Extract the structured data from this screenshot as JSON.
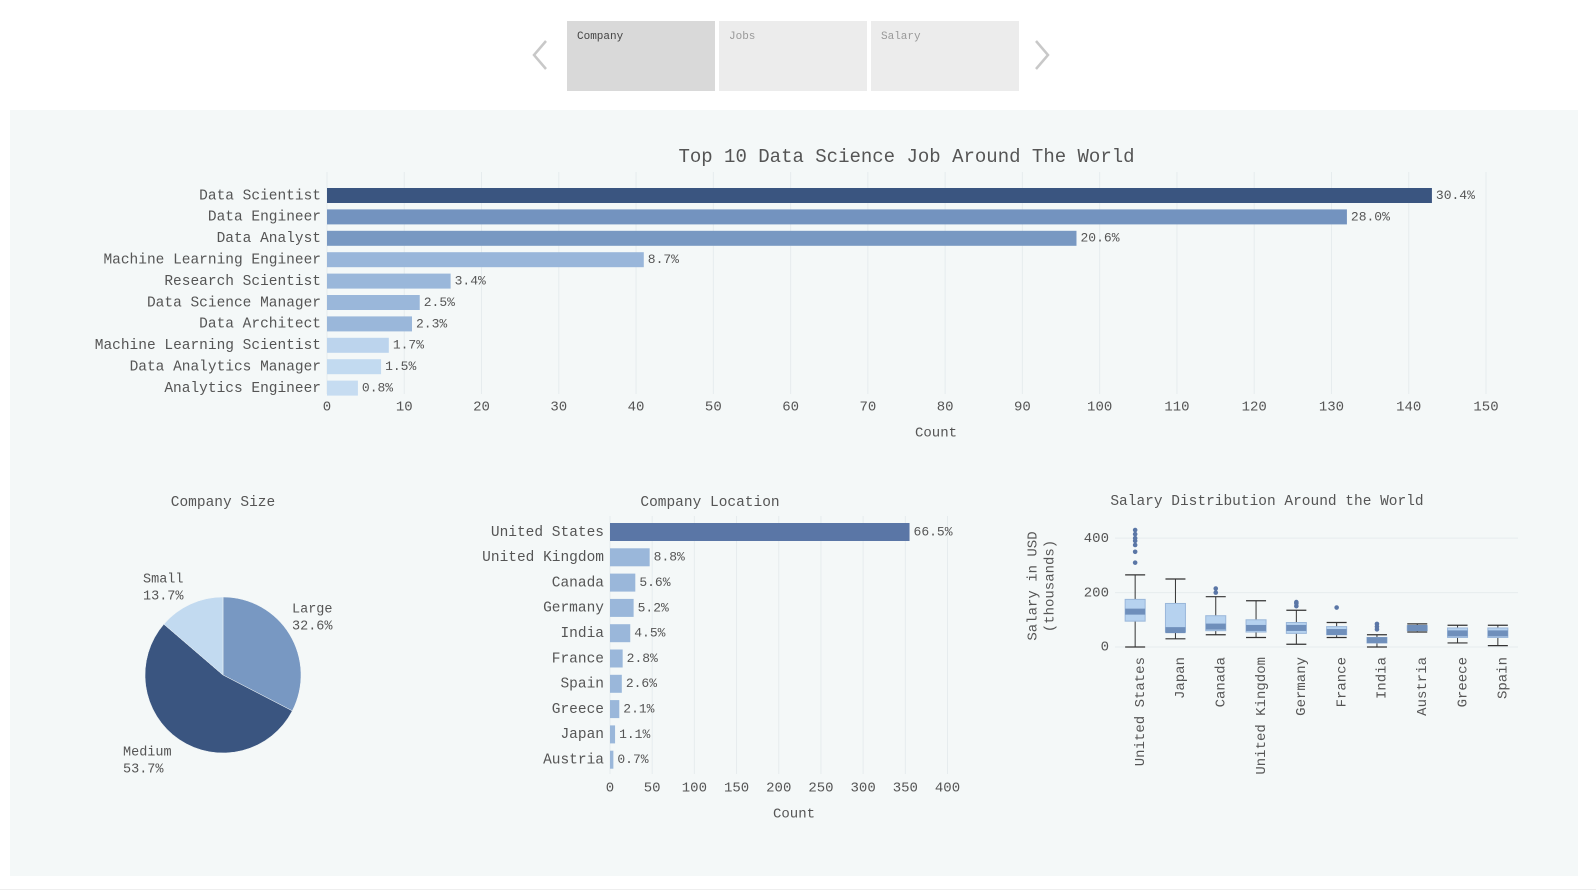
{
  "tabs": [
    {
      "label": "Company",
      "active": true
    },
    {
      "label": "Jobs",
      "active": false
    },
    {
      "label": "Salary",
      "active": false
    }
  ],
  "colors": {
    "panel": "#f4f8f8",
    "dark": "#3a5580",
    "mid": "#7898c2",
    "light": "#9ab7da",
    "lighter": "#c2daf0"
  },
  "chart_data": [
    {
      "type": "bar",
      "orientation": "horizontal",
      "title": "Top 10 Data Science Job Around The World",
      "xlabel": "Count",
      "categories": [
        "Data Scientist",
        "Data Engineer",
        "Data Analyst",
        "Machine Learning Engineer",
        "Research Scientist",
        "Data Science Manager",
        "Data Architect",
        "Machine Learning Scientist",
        "Data Analytics Manager",
        "Analytics Engineer"
      ],
      "values": [
        143,
        132,
        97,
        41,
        16,
        12,
        11,
        8,
        7,
        4
      ],
      "labels": [
        "30.4%",
        "28.0%",
        "20.6%",
        "8.7%",
        "3.4%",
        "2.5%",
        "2.3%",
        "1.7%",
        "1.5%",
        "0.8%"
      ],
      "colors": [
        "#3a5580",
        "#7393bf",
        "#7898c2",
        "#99b6da",
        "#9ab7da",
        "#9ab7da",
        "#9ab7da",
        "#bcd4ed",
        "#c2daf0",
        "#c6dcf1"
      ],
      "xticks": [
        0,
        10,
        20,
        30,
        40,
        50,
        60,
        70,
        80,
        90,
        100,
        110,
        120,
        130,
        140,
        150
      ],
      "xlim": [
        0,
        150
      ],
      "grid": true
    },
    {
      "type": "pie",
      "title": "Company Size",
      "slices": [
        {
          "label": "Large",
          "value": 32.6,
          "pct": "32.6%",
          "color": "#7898c2"
        },
        {
          "label": "Medium",
          "value": 53.7,
          "pct": "53.7%",
          "color": "#3a5580"
        },
        {
          "label": "Small",
          "value": 13.7,
          "pct": "13.7%",
          "color": "#c2daf0"
        }
      ]
    },
    {
      "type": "bar",
      "orientation": "horizontal",
      "title": "Company Location",
      "xlabel": "Count",
      "categories": [
        "United States",
        "United Kingdom",
        "Canada",
        "Germany",
        "India",
        "France",
        "Spain",
        "Greece",
        "Japan",
        "Austria"
      ],
      "values": [
        355,
        47,
        30,
        28,
        24,
        15,
        14,
        11,
        6,
        4
      ],
      "labels": [
        "66.5%",
        "8.8%",
        "5.6%",
        "5.2%",
        "4.5%",
        "2.8%",
        "2.6%",
        "2.1%",
        "1.1%",
        "0.7%"
      ],
      "colors": [
        "#5a76a6",
        "#9ab7da",
        "#9ab7da",
        "#9ab7da",
        "#9ab7da",
        "#9ab7da",
        "#9ab7da",
        "#9ab7da",
        "#9ab7da",
        "#9ab7da"
      ],
      "xticks": [
        0,
        50,
        100,
        150,
        200,
        250,
        300,
        350,
        400
      ],
      "xlim": [
        0,
        400
      ],
      "grid": true
    },
    {
      "type": "box",
      "title": "Salary Distribution Around the World",
      "ylabel": "Salary in USD\n(thousands)",
      "categories": [
        "United States",
        "Japan",
        "Canada",
        "United Kingdom",
        "Germany",
        "France",
        "India",
        "Austria",
        "Greece",
        "Spain"
      ],
      "yticks": [
        0,
        200,
        400
      ],
      "ylim": [
        0,
        430
      ],
      "boxes": [
        {
          "min": 0,
          "q1": 95,
          "median": 130,
          "q3": 175,
          "max": 265,
          "outliers": [
            310,
            350,
            375,
            390,
            400,
            415,
            430
          ]
        },
        {
          "min": 30,
          "q1": 55,
          "median": 62,
          "q3": 160,
          "max": 250,
          "outliers": []
        },
        {
          "min": 45,
          "q1": 60,
          "median": 75,
          "q3": 115,
          "max": 185,
          "outliers": [
            200,
            215
          ]
        },
        {
          "min": 35,
          "q1": 55,
          "median": 70,
          "q3": 100,
          "max": 170,
          "outliers": []
        },
        {
          "min": 10,
          "q1": 50,
          "median": 70,
          "q3": 90,
          "max": 135,
          "outliers": [
            150,
            160,
            165
          ]
        },
        {
          "min": 35,
          "q1": 45,
          "median": 55,
          "q3": 75,
          "max": 90,
          "outliers": [
            145
          ]
        },
        {
          "min": 0,
          "q1": 15,
          "median": 25,
          "q3": 35,
          "max": 45,
          "outliers": [
            65,
            75,
            85
          ]
        },
        {
          "min": 55,
          "q1": 60,
          "median": 70,
          "q3": 78,
          "max": 85,
          "outliers": []
        },
        {
          "min": 15,
          "q1": 35,
          "median": 50,
          "q3": 70,
          "max": 80,
          "outliers": []
        },
        {
          "min": 5,
          "q1": 35,
          "median": 50,
          "q3": 70,
          "max": 80,
          "outliers": []
        }
      ]
    }
  ]
}
